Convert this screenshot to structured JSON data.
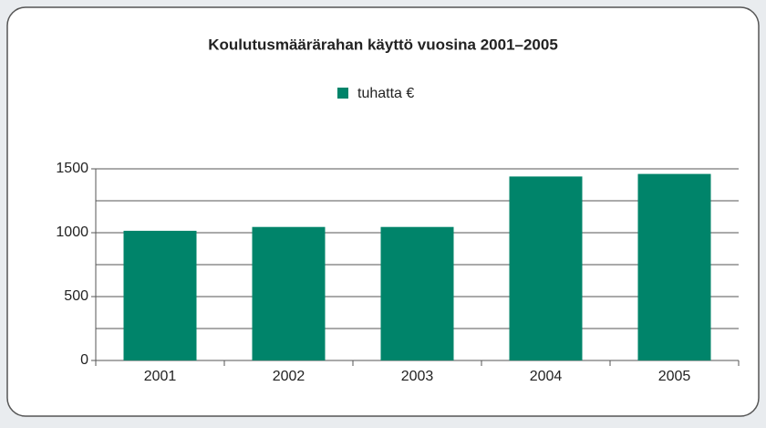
{
  "chart_data": {
    "type": "bar",
    "title": "Koulutusmäärärahan käyttö vuosina 2001–2005",
    "categories": [
      "2001",
      "2002",
      "2003",
      "2004",
      "2005"
    ],
    "series": [
      {
        "name": "tuhatta €",
        "color": "#00846a",
        "values": [
          1015,
          1045,
          1045,
          1440,
          1460
        ]
      }
    ],
    "ylim": [
      0,
      1500
    ],
    "yticks": [
      0,
      500,
      1000,
      1500
    ],
    "minor_yticks": [
      250,
      750,
      1250
    ],
    "grid": true,
    "legend": "top"
  }
}
